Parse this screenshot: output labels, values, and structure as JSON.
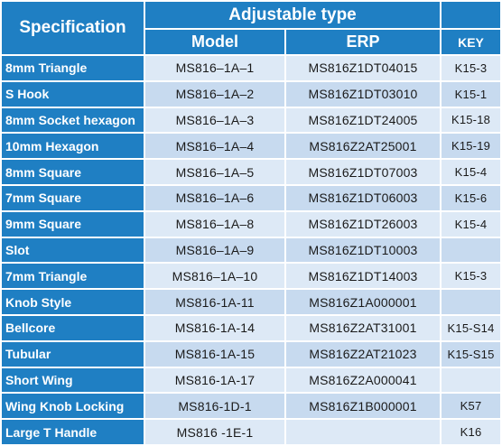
{
  "header": {
    "specification": "Specification",
    "adjustable_type": "Adjustable type",
    "model": "Model",
    "erp": "ERP",
    "key": "KEY"
  },
  "rows": [
    {
      "spec": "8mm Triangle",
      "model": "MS816–1A–1",
      "erp": "MS816Z1DT04015",
      "key": "K15-3"
    },
    {
      "spec": "S Hook",
      "model": "MS816–1A–2",
      "erp": "MS816Z1DT03010",
      "key": "K15-1"
    },
    {
      "spec": "8mm Socket hexagon",
      "model": "MS816–1A–3",
      "erp": "MS816Z1DT24005",
      "key": "K15-18"
    },
    {
      "spec": "10mm Hexagon",
      "model": "MS816–1A–4",
      "erp": "MS816Z2AT25001",
      "key": "K15-19"
    },
    {
      "spec": "8mm Square",
      "model": "MS816–1A–5",
      "erp": "MS816Z1DT07003",
      "key": "K15-4"
    },
    {
      "spec": "7mm Square",
      "model": "MS816–1A–6",
      "erp": "MS816Z1DT06003",
      "key": "K15-6"
    },
    {
      "spec": "9mm Square",
      "model": "MS816–1A–8",
      "erp": "MS816Z1DT26003",
      "key": "K15-4"
    },
    {
      "spec": "Slot",
      "model": "MS816–1A–9",
      "erp": "MS816Z1DT10003",
      "key": ""
    },
    {
      "spec": "7mm Triangle",
      "model": "MS816–1A–10",
      "erp": "MS816Z1DT14003",
      "key": "K15-3"
    },
    {
      "spec": "Knob Style",
      "model": "MS816-1A-11",
      "erp": "MS816Z1A000001",
      "key": ""
    },
    {
      "spec": "Bellcore",
      "model": "MS816-1A-14",
      "erp": "MS816Z2AT31001",
      "key": "K15-S14"
    },
    {
      "spec": "Tubular",
      "model": "MS816-1A-15",
      "erp": "MS816Z2AT21023",
      "key": "K15-S15"
    },
    {
      "spec": "Short Wing",
      "model": "MS816-1A-17",
      "erp": "MS816Z2A000041",
      "key": ""
    },
    {
      "spec": "Wing Knob Locking",
      "model": "MS816-1D-1",
      "erp": "MS816Z1B000001",
      "key": "K57"
    },
    {
      "spec": "Large T Handle",
      "model": "MS816 -1E-1",
      "erp": "",
      "key": "K16"
    }
  ]
}
